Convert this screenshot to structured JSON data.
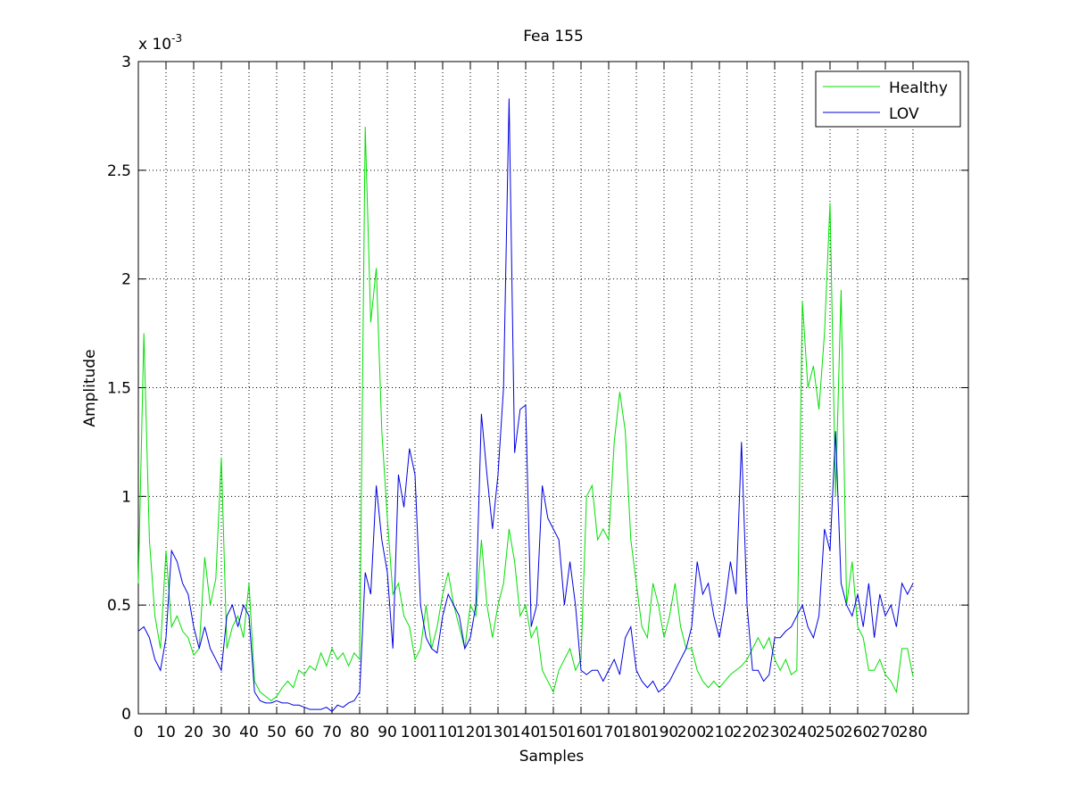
{
  "chart_data": {
    "type": "line",
    "title": "Fea 155",
    "xlabel": "Samples",
    "ylabel": "Amplitude",
    "y_multiplier": {
      "base": "x 10",
      "exponent": "-3"
    },
    "xlim": [
      0,
      300
    ],
    "ylim": [
      0,
      3
    ],
    "xticks": [
      0,
      10,
      20,
      30,
      40,
      50,
      60,
      70,
      80,
      90,
      100,
      110,
      120,
      130,
      140,
      150,
      160,
      170,
      180,
      190,
      200,
      210,
      220,
      230,
      240,
      250,
      260,
      270,
      280
    ],
    "yticks": [
      0,
      0.5,
      1,
      1.5,
      2,
      2.5,
      3
    ],
    "grid": true,
    "legend": "upper right",
    "x": [
      0,
      2,
      4,
      6,
      8,
      10,
      12,
      14,
      16,
      18,
      20,
      22,
      24,
      26,
      28,
      30,
      32,
      34,
      36,
      38,
      40,
      42,
      44,
      46,
      48,
      50,
      52,
      54,
      56,
      58,
      60,
      62,
      64,
      66,
      68,
      70,
      72,
      74,
      76,
      78,
      80,
      82,
      84,
      86,
      88,
      90,
      92,
      94,
      96,
      98,
      100,
      102,
      104,
      106,
      108,
      110,
      112,
      114,
      116,
      118,
      120,
      122,
      124,
      126,
      128,
      130,
      132,
      134,
      136,
      138,
      140,
      142,
      144,
      146,
      148,
      150,
      152,
      154,
      156,
      158,
      160,
      162,
      164,
      166,
      168,
      170,
      172,
      174,
      176,
      178,
      180,
      182,
      184,
      186,
      188,
      190,
      192,
      194,
      196,
      198,
      200,
      202,
      204,
      206,
      208,
      210,
      212,
      214,
      216,
      218,
      220,
      222,
      224,
      226,
      228,
      230,
      232,
      234,
      236,
      238,
      240,
      242,
      244,
      246,
      248,
      250,
      252,
      254,
      256,
      258,
      260,
      262,
      264,
      266,
      268,
      270,
      272,
      274,
      276,
      278,
      280
    ],
    "series": [
      {
        "name": "Healthy",
        "color": "#00e000",
        "values": [
          0.6,
          1.75,
          0.8,
          0.45,
          0.3,
          0.75,
          0.4,
          0.45,
          0.38,
          0.35,
          0.27,
          0.3,
          0.72,
          0.5,
          0.62,
          1.18,
          0.3,
          0.4,
          0.45,
          0.35,
          0.6,
          0.15,
          0.1,
          0.08,
          0.06,
          0.08,
          0.12,
          0.15,
          0.12,
          0.2,
          0.18,
          0.22,
          0.2,
          0.28,
          0.22,
          0.3,
          0.25,
          0.28,
          0.22,
          0.28,
          0.25,
          2.7,
          1.8,
          2.05,
          1.3,
          0.9,
          0.55,
          0.6,
          0.45,
          0.4,
          0.25,
          0.3,
          0.5,
          0.3,
          0.4,
          0.55,
          0.65,
          0.5,
          0.4,
          0.3,
          0.5,
          0.45,
          0.8,
          0.5,
          0.35,
          0.5,
          0.6,
          0.85,
          0.7,
          0.45,
          0.5,
          0.35,
          0.4,
          0.2,
          0.15,
          0.1,
          0.2,
          0.25,
          0.3,
          0.2,
          0.25,
          1.0,
          1.05,
          0.8,
          0.85,
          0.8,
          1.25,
          1.48,
          1.3,
          0.8,
          0.6,
          0.4,
          0.35,
          0.6,
          0.5,
          0.35,
          0.45,
          0.6,
          0.4,
          0.3,
          0.3,
          0.2,
          0.15,
          0.12,
          0.15,
          0.12,
          0.15,
          0.18,
          0.2,
          0.22,
          0.25,
          0.3,
          0.35,
          0.3,
          0.35,
          0.25,
          0.2,
          0.25,
          0.18,
          0.2,
          1.9,
          1.5,
          1.6,
          1.4,
          1.75,
          2.35,
          1.0,
          1.95,
          0.5,
          0.7,
          0.4,
          0.35,
          0.2,
          0.2,
          0.25,
          0.18,
          0.15,
          0.1,
          0.3,
          0.3,
          0.17
        ]
      },
      {
        "name": "LOV",
        "color": "#0000e0",
        "values": [
          0.38,
          0.4,
          0.35,
          0.25,
          0.2,
          0.35,
          0.75,
          0.7,
          0.6,
          0.55,
          0.4,
          0.3,
          0.4,
          0.3,
          0.25,
          0.2,
          0.45,
          0.5,
          0.4,
          0.5,
          0.45,
          0.1,
          0.06,
          0.05,
          0.05,
          0.06,
          0.05,
          0.05,
          0.04,
          0.04,
          0.03,
          0.02,
          0.02,
          0.02,
          0.03,
          0.01,
          0.04,
          0.03,
          0.05,
          0.06,
          0.1,
          0.65,
          0.55,
          1.05,
          0.8,
          0.65,
          0.3,
          1.1,
          0.95,
          1.22,
          1.1,
          0.5,
          0.35,
          0.3,
          0.28,
          0.45,
          0.55,
          0.5,
          0.45,
          0.3,
          0.35,
          0.5,
          1.38,
          1.1,
          0.85,
          1.1,
          1.5,
          2.83,
          1.2,
          1.4,
          1.42,
          0.4,
          0.5,
          1.05,
          0.9,
          0.85,
          0.8,
          0.5,
          0.7,
          0.5,
          0.2,
          0.18,
          0.2,
          0.2,
          0.15,
          0.2,
          0.25,
          0.18,
          0.35,
          0.4,
          0.2,
          0.15,
          0.12,
          0.15,
          0.1,
          0.12,
          0.15,
          0.2,
          0.25,
          0.3,
          0.4,
          0.7,
          0.55,
          0.6,
          0.45,
          0.35,
          0.5,
          0.7,
          0.55,
          1.25,
          0.5,
          0.2,
          0.2,
          0.15,
          0.18,
          0.35,
          0.35,
          0.38,
          0.4,
          0.45,
          0.5,
          0.4,
          0.35,
          0.45,
          0.85,
          0.75,
          1.3,
          0.6,
          0.5,
          0.45,
          0.55,
          0.4,
          0.6,
          0.35,
          0.55,
          0.45,
          0.5,
          0.4,
          0.6,
          0.55,
          0.6
        ]
      }
    ]
  }
}
